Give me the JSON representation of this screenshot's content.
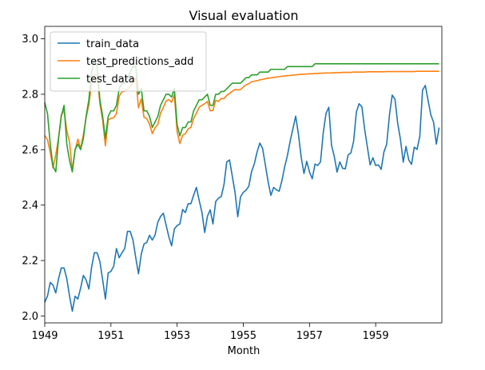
{
  "chart_data": {
    "type": "line",
    "title": "Visual evaluation",
    "xlabel": "Month",
    "ylabel": "",
    "x_ticks": [
      "1949",
      "1951",
      "1953",
      "1955",
      "1957",
      "1959"
    ],
    "y_ticks": [
      "2.0",
      "2.2",
      "2.4",
      "2.6",
      "2.8",
      "3.0"
    ],
    "xlim": [
      1949.0,
      1961.0
    ],
    "ylim": [
      1.975,
      3.045
    ],
    "grid": false,
    "legend_position": "top-left",
    "series": [
      {
        "name": "train_data",
        "color": "#1f77b4",
        "start_year": 1949,
        "values": [
          2.049,
          2.072,
          2.121,
          2.111,
          2.083,
          2.134,
          2.173,
          2.173,
          2.134,
          2.071,
          2.017,
          2.071,
          2.061,
          2.1,
          2.146,
          2.13,
          2.097,
          2.176,
          2.228,
          2.228,
          2.196,
          2.13,
          2.061,
          2.155,
          2.161,
          2.179,
          2.243,
          2.21,
          2.228,
          2.243,
          2.305,
          2.305,
          2.274,
          2.21,
          2.152,
          2.223,
          2.26,
          2.265,
          2.291,
          2.274,
          2.292,
          2.338,
          2.359,
          2.371,
          2.328,
          2.286,
          2.253,
          2.314,
          2.326,
          2.332,
          2.384,
          2.373,
          2.405,
          2.405,
          2.436,
          2.464,
          2.417,
          2.374,
          2.301,
          2.36,
          2.383,
          2.332,
          2.413,
          2.425,
          2.431,
          2.474,
          2.556,
          2.563,
          2.505,
          2.446,
          2.358,
          2.43,
          2.446,
          2.454,
          2.468,
          2.521,
          2.549,
          2.592,
          2.624,
          2.604,
          2.545,
          2.484,
          2.435,
          2.464,
          2.455,
          2.45,
          2.488,
          2.538,
          2.579,
          2.631,
          2.676,
          2.721,
          2.655,
          2.572,
          2.514,
          2.558,
          2.52,
          2.495,
          2.548,
          2.543,
          2.556,
          2.662,
          2.731,
          2.753,
          2.616,
          2.575,
          2.519,
          2.556,
          2.533,
          2.531,
          2.581,
          2.588,
          2.63,
          2.736,
          2.766,
          2.755,
          2.674,
          2.609,
          2.545,
          2.571,
          2.543,
          2.545,
          2.529,
          2.592,
          2.62,
          2.725,
          2.797,
          2.782,
          2.695,
          2.636,
          2.555,
          2.612,
          2.563,
          2.547,
          2.609,
          2.601,
          2.648,
          2.815,
          2.832,
          2.778,
          2.726,
          2.699,
          2.62,
          2.68
        ]
      },
      {
        "name": "test_predictions_add",
        "color": "#ff7f0e",
        "start_year": 1949,
        "values": [
          2.651,
          2.636,
          2.59,
          2.534,
          2.581,
          2.643,
          2.725,
          2.742,
          2.669,
          2.627,
          2.524,
          2.598,
          2.638,
          2.603,
          2.654,
          2.715,
          2.762,
          2.84,
          2.871,
          2.87,
          2.766,
          2.706,
          2.614,
          2.707,
          2.713,
          2.715,
          2.73,
          2.793,
          2.809,
          2.811,
          2.818,
          2.828,
          2.844,
          2.859,
          2.751,
          2.783,
          2.717,
          2.712,
          2.692,
          2.658,
          2.679,
          2.691,
          2.732,
          2.752,
          2.776,
          2.781,
          2.771,
          2.799,
          2.665,
          2.622,
          2.652,
          2.658,
          2.675,
          2.681,
          2.713,
          2.732,
          2.753,
          2.76,
          2.766,
          2.774,
          2.74,
          2.742,
          2.778,
          2.774,
          2.785,
          2.784,
          2.796,
          2.803,
          2.811,
          2.817,
          2.816,
          2.817,
          2.826,
          2.834,
          2.838,
          2.845,
          2.847,
          2.849,
          2.852,
          2.854,
          2.856,
          2.858,
          2.859,
          2.861,
          2.862,
          2.864,
          2.865,
          2.866,
          2.867,
          2.868,
          2.869,
          2.87,
          2.871,
          2.872,
          2.872,
          2.873,
          2.874,
          2.874,
          2.875,
          2.875,
          2.876,
          2.876,
          2.877,
          2.877,
          2.877,
          2.878,
          2.878,
          2.878,
          2.879,
          2.879,
          2.879,
          2.879,
          2.88,
          2.88,
          2.88,
          2.88,
          2.88,
          2.881,
          2.881,
          2.881,
          2.881,
          2.881,
          2.881,
          2.881,
          2.882,
          2.882,
          2.882,
          2.882,
          2.882,
          2.882,
          2.882,
          2.882,
          2.882,
          2.882,
          2.882,
          2.883,
          2.883,
          2.883,
          2.883,
          2.883,
          2.883,
          2.883,
          2.883,
          2.883
        ]
      },
      {
        "name": "test_data",
        "color": "#2ca02c",
        "start_year": 1949,
        "values": [
          2.77,
          2.73,
          2.62,
          2.54,
          2.52,
          2.64,
          2.72,
          2.76,
          2.62,
          2.56,
          2.52,
          2.6,
          2.62,
          2.6,
          2.64,
          2.72,
          2.78,
          2.88,
          2.92,
          2.9,
          2.78,
          2.72,
          2.64,
          2.72,
          2.74,
          2.74,
          2.76,
          2.82,
          2.84,
          2.84,
          2.86,
          2.88,
          2.9,
          2.9,
          2.8,
          2.82,
          2.74,
          2.74,
          2.72,
          2.68,
          2.7,
          2.72,
          2.76,
          2.78,
          2.8,
          2.8,
          2.79,
          2.82,
          2.69,
          2.65,
          2.68,
          2.68,
          2.7,
          2.7,
          2.74,
          2.76,
          2.78,
          2.78,
          2.79,
          2.8,
          2.76,
          2.76,
          2.8,
          2.8,
          2.81,
          2.81,
          2.82,
          2.83,
          2.84,
          2.84,
          2.84,
          2.84,
          2.85,
          2.86,
          2.86,
          2.87,
          2.87,
          2.87,
          2.88,
          2.88,
          2.88,
          2.88,
          2.89,
          2.89,
          2.89,
          2.89,
          2.89,
          2.89,
          2.9,
          2.9,
          2.9,
          2.9,
          2.9,
          2.9,
          2.9,
          2.9,
          2.9,
          2.9,
          2.91,
          2.91,
          2.91,
          2.91,
          2.91,
          2.91,
          2.91,
          2.91,
          2.91,
          2.91,
          2.91,
          2.91,
          2.91,
          2.91,
          2.91,
          2.91,
          2.91,
          2.91,
          2.91,
          2.91,
          2.91,
          2.91,
          2.91,
          2.91,
          2.91,
          2.91,
          2.91,
          2.91,
          2.91,
          2.91,
          2.91,
          2.91,
          2.91,
          2.91,
          2.91,
          2.91,
          2.91,
          2.91,
          2.91,
          2.91,
          2.91,
          2.91,
          2.91,
          2.91,
          2.91,
          2.91
        ]
      }
    ]
  }
}
